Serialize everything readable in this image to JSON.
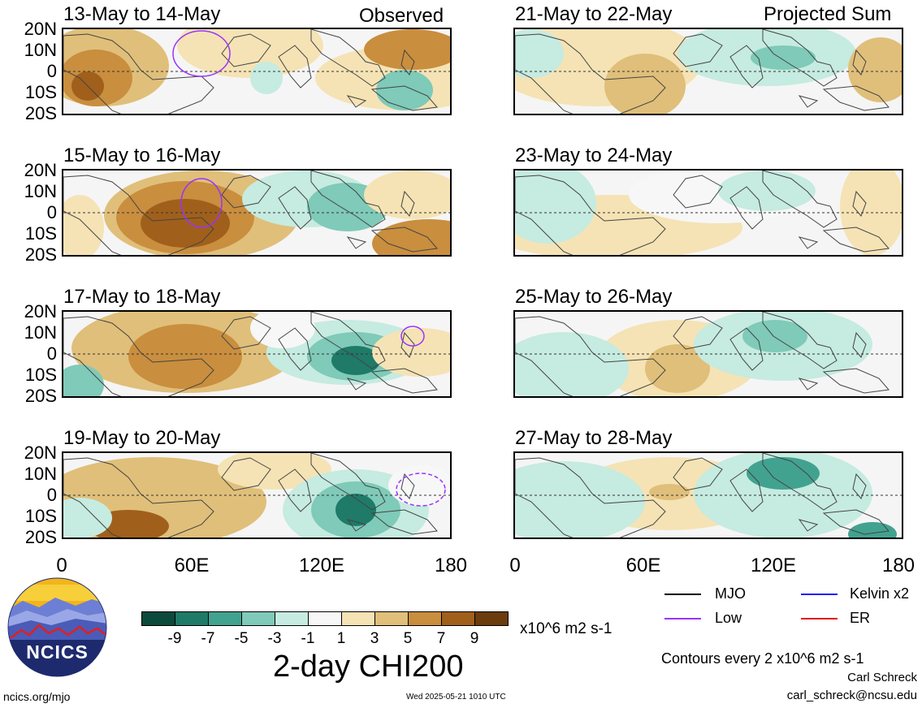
{
  "header": {
    "observed_label": "Observed",
    "projected_label": "Projected Sum"
  },
  "panels": {
    "left": [
      "13-May to 14-May",
      "15-May to 16-May",
      "17-May to 18-May",
      "19-May to 20-May"
    ],
    "right": [
      "21-May to 22-May",
      "23-May to 24-May",
      "25-May to 26-May",
      "27-May to 28-May"
    ]
  },
  "axes": {
    "lat_labels": [
      "20N",
      "10N",
      "0",
      "10S",
      "20S"
    ],
    "lon_labels": [
      "0",
      "60E",
      "120E",
      "180"
    ]
  },
  "colorbar": {
    "labels": [
      "-9",
      "-7",
      "-5",
      "-3",
      "-1",
      "1",
      "3",
      "5",
      "7",
      "9"
    ],
    "colors": [
      "#0c4a3c",
      "#1f7a68",
      "#42a290",
      "#7fcab8",
      "#c6ebe0",
      "#f7f7f7",
      "#f5e3b5",
      "#e0bf7a",
      "#c98e3e",
      "#a0601c",
      "#6b3c0c"
    ],
    "units": "x10^6 m2 s-1",
    "title": "2-day CHI200"
  },
  "legend": {
    "mjo": "MJO",
    "kelvin": "Kelvin x2",
    "low": "Low",
    "er": "ER",
    "colors": {
      "mjo": "#000000",
      "kelvin": "#1a1aff",
      "low": "#9933ff",
      "er": "#e01010"
    },
    "contours_note": "Contours every 2 x10^6 m2 s-1"
  },
  "footer": {
    "logo_text": "NCICS",
    "url": "ncics.org/mjo",
    "timestamp": "Wed 2025-05-21 1010 UTC",
    "author": "Carl Schreck",
    "email": "carl_schreck@ncsu.edu"
  }
}
